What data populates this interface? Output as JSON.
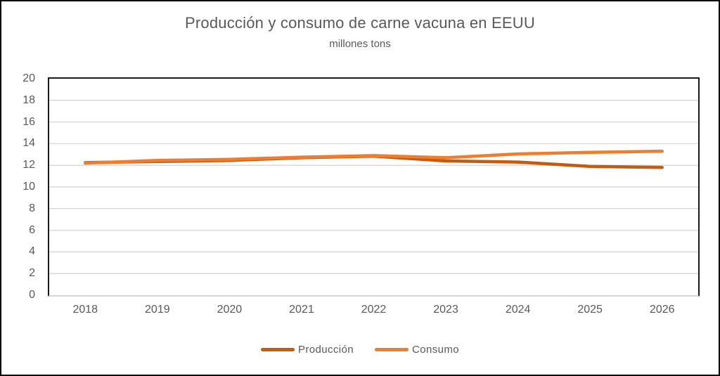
{
  "chart_data": {
    "type": "line",
    "title": "Producción y consumo de carne vacuna en EEUU",
    "subtitle": "millones tons",
    "categories": [
      "2018",
      "2019",
      "2020",
      "2021",
      "2022",
      "2023",
      "2024",
      "2025",
      "2026"
    ],
    "series": [
      {
        "name": "Producción",
        "color": "#C55A11",
        "values": [
          12.25,
          12.35,
          12.45,
          12.7,
          12.85,
          12.4,
          12.3,
          11.9,
          11.8
        ]
      },
      {
        "name": "Consumo",
        "color": "#ED7D31",
        "values": [
          12.2,
          12.45,
          12.55,
          12.75,
          12.9,
          12.7,
          13.05,
          13.2,
          13.3
        ]
      }
    ],
    "ylim": [
      0,
      20
    ],
    "yticks": [
      0,
      2,
      4,
      6,
      8,
      10,
      12,
      14,
      16,
      18,
      20
    ],
    "xlabel": "",
    "ylabel": "",
    "grid": "horizontal",
    "legend_position": "bottom",
    "colors": {
      "gridline": "#D9D9D9",
      "axis_border": "#1a1a1a",
      "baseline": "#d6d6d6",
      "text": "#595959"
    }
  }
}
